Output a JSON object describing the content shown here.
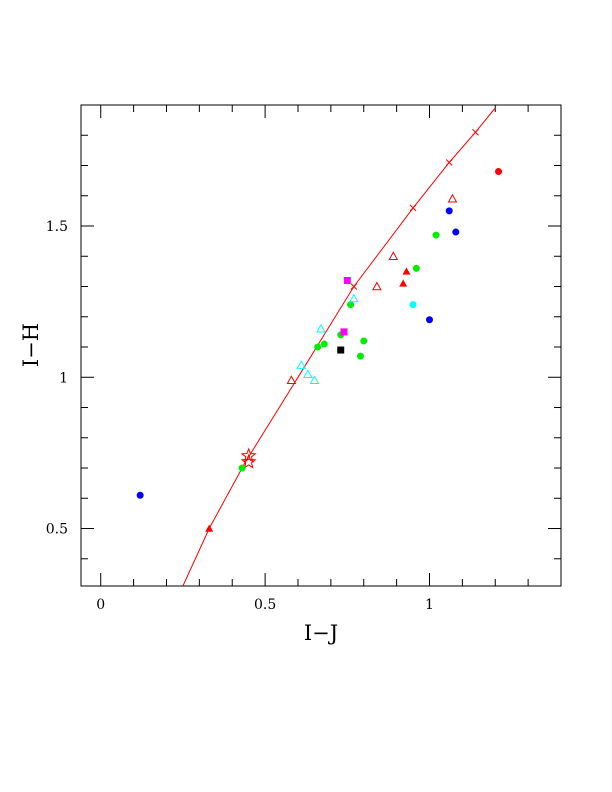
{
  "chart_data": {
    "type": "scatter",
    "title": "",
    "xlabel": "I−J",
    "ylabel": "I−H",
    "xlim": [
      -0.06,
      1.4
    ],
    "ylim": [
      0.31,
      1.9
    ],
    "grid": false,
    "legend": "none",
    "x_ticks": [
      {
        "value": 0,
        "label": "0"
      },
      {
        "value": 0.5,
        "label": "0.5"
      },
      {
        "value": 1,
        "label": "1"
      }
    ],
    "y_ticks": [
      {
        "value": 0.5,
        "label": "0.5"
      },
      {
        "value": 1,
        "label": "1"
      },
      {
        "value": 1.5,
        "label": "1.5"
      }
    ],
    "x_minor_step": 0.1,
    "y_minor_step": 0.1,
    "curve": {
      "color": "#ff0000",
      "points": [
        {
          "x": 0.25,
          "y": 0.31
        },
        {
          "x": 0.33,
          "y": 0.5
        },
        {
          "x": 0.44,
          "y": 0.72
        },
        {
          "x": 0.6,
          "y": 1.0
        },
        {
          "x": 0.77,
          "y": 1.3
        },
        {
          "x": 0.95,
          "y": 1.56
        },
        {
          "x": 1.06,
          "y": 1.71
        },
        {
          "x": 1.14,
          "y": 1.81
        },
        {
          "x": 1.2,
          "y": 1.89
        }
      ],
      "cross_markers": [
        {
          "x": 0.77,
          "y": 1.3
        },
        {
          "x": 0.95,
          "y": 1.56
        },
        {
          "x": 1.06,
          "y": 1.71
        },
        {
          "x": 1.14,
          "y": 1.81
        }
      ]
    },
    "star_markers": [
      {
        "x": 0.45,
        "y": 0.74
      },
      {
        "x": 0.45,
        "y": 0.72
      }
    ],
    "points": [
      {
        "x": 0.12,
        "y": 0.61,
        "shape": "circle",
        "color": "#0000ff"
      },
      {
        "x": 0.43,
        "y": 0.7,
        "shape": "circle",
        "color": "#00ee00"
      },
      {
        "x": 0.66,
        "y": 1.1,
        "shape": "circle",
        "color": "#00ee00"
      },
      {
        "x": 0.68,
        "y": 1.11,
        "shape": "circle",
        "color": "#00ee00"
      },
      {
        "x": 0.73,
        "y": 1.14,
        "shape": "circle",
        "color": "#00ee00"
      },
      {
        "x": 0.76,
        "y": 1.24,
        "shape": "circle",
        "color": "#00ee00"
      },
      {
        "x": 0.79,
        "y": 1.07,
        "shape": "circle",
        "color": "#00ee00"
      },
      {
        "x": 0.8,
        "y": 1.12,
        "shape": "circle",
        "color": "#00ee00"
      },
      {
        "x": 0.96,
        "y": 1.36,
        "shape": "circle",
        "color": "#00ee00"
      },
      {
        "x": 1.02,
        "y": 1.47,
        "shape": "circle",
        "color": "#00ee00"
      },
      {
        "x": 0.95,
        "y": 1.24,
        "shape": "circle",
        "color": "#00ffff"
      },
      {
        "x": 1.0,
        "y": 1.19,
        "shape": "circle",
        "color": "#0000ff"
      },
      {
        "x": 1.06,
        "y": 1.55,
        "shape": "circle",
        "color": "#0000ff"
      },
      {
        "x": 1.08,
        "y": 1.48,
        "shape": "circle",
        "color": "#0000ff"
      },
      {
        "x": 1.21,
        "y": 1.68,
        "shape": "circle",
        "color": "#ff0000"
      },
      {
        "x": 0.75,
        "y": 1.32,
        "shape": "square",
        "color": "#ff00ff"
      },
      {
        "x": 0.74,
        "y": 1.15,
        "shape": "square",
        "color": "#ff00ff"
      },
      {
        "x": 0.73,
        "y": 1.09,
        "shape": "square",
        "color": "#000000"
      },
      {
        "x": 0.33,
        "y": 0.5,
        "shape": "triangle-filled",
        "color": "#ff0000"
      },
      {
        "x": 0.92,
        "y": 1.31,
        "shape": "triangle-filled",
        "color": "#ff0000"
      },
      {
        "x": 0.93,
        "y": 1.35,
        "shape": "triangle-filled",
        "color": "#ff0000"
      },
      {
        "x": 0.58,
        "y": 0.99,
        "shape": "triangle-open",
        "color": "#ff0000"
      },
      {
        "x": 0.84,
        "y": 1.3,
        "shape": "triangle-open",
        "color": "#ff0000"
      },
      {
        "x": 0.89,
        "y": 1.4,
        "shape": "triangle-open",
        "color": "#ff0000"
      },
      {
        "x": 1.07,
        "y": 1.59,
        "shape": "triangle-open",
        "color": "#ff0000"
      },
      {
        "x": 0.61,
        "y": 1.04,
        "shape": "triangle-open",
        "color": "#00ffff"
      },
      {
        "x": 0.63,
        "y": 1.01,
        "shape": "triangle-open",
        "color": "#00ffff"
      },
      {
        "x": 0.65,
        "y": 0.99,
        "shape": "triangle-open",
        "color": "#00ffff"
      },
      {
        "x": 0.67,
        "y": 1.16,
        "shape": "triangle-open",
        "color": "#00ffff"
      },
      {
        "x": 0.77,
        "y": 1.26,
        "shape": "triangle-open",
        "color": "#00ffff"
      }
    ]
  }
}
